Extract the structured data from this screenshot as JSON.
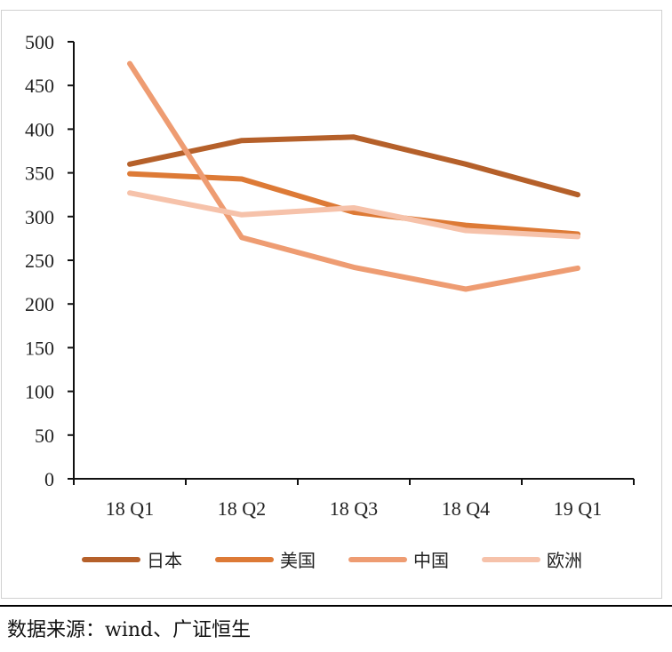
{
  "chart_data": {
    "type": "line",
    "categories": [
      "18 Q1",
      "18 Q2",
      "18 Q3",
      "18 Q4",
      "19 Q1"
    ],
    "series": [
      {
        "name": "日本",
        "color": "#b5602a",
        "values": [
          360,
          387,
          391,
          360,
          325
        ]
      },
      {
        "name": "美国",
        "color": "#dd7a36",
        "values": [
          349,
          343,
          305,
          290,
          280
        ]
      },
      {
        "name": "中国",
        "color": "#ee9c72",
        "values": [
          475,
          276,
          242,
          217,
          241
        ]
      },
      {
        "name": "欧洲",
        "color": "#f6c2aa",
        "values": [
          327,
          302,
          310,
          284,
          277
        ]
      }
    ],
    "ylim": [
      0,
      500
    ],
    "yticks": [
      0,
      50,
      100,
      150,
      200,
      250,
      300,
      350,
      400,
      450,
      500
    ],
    "grid": false,
    "legend": "bottom"
  },
  "source": "数据来源：wind、广证恒生"
}
